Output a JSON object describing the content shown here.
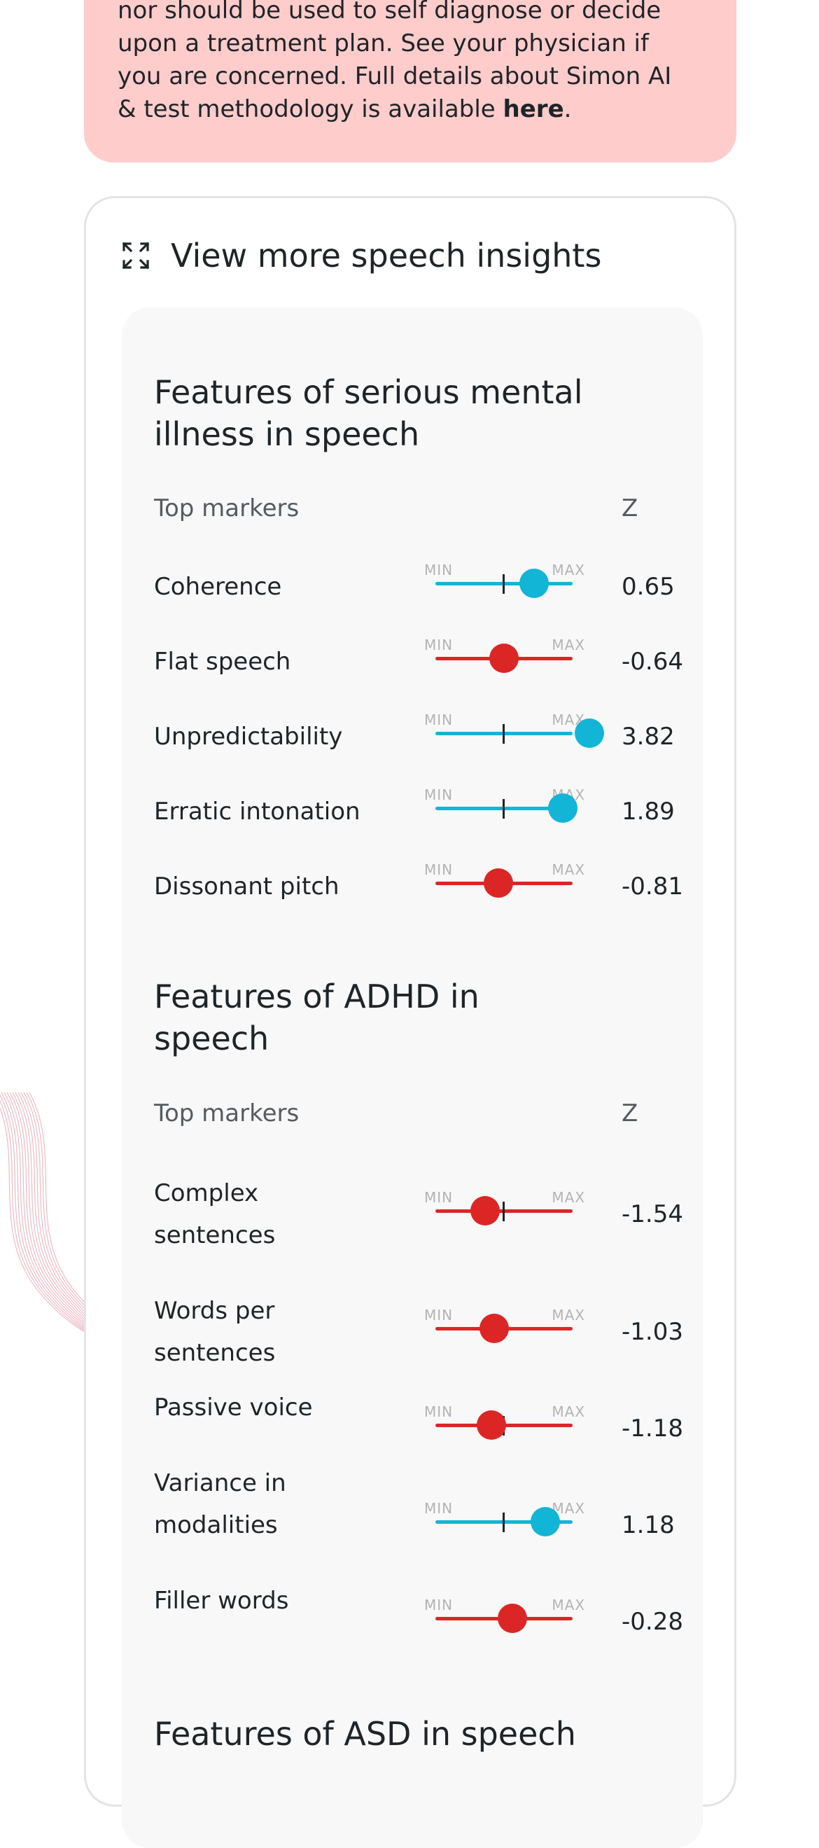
{
  "disclaimer": {
    "lines": [
      "nor should be used to self diagnose or decide",
      "upon a treatment plan. See your physician if",
      "you are concerned. Full details about Simon AI"
    ],
    "last_line_prefix": "& test methodology is available ",
    "link_text": "here",
    "last_line_suffix": "."
  },
  "insights_card": {
    "title": "View more speech insights",
    "icon": "expand-icon"
  },
  "colors": {
    "positive": "#12b5d6",
    "negative": "#dc2626",
    "disclaimer_bg": "#ffcccc"
  },
  "slider_labels": {
    "min": "MIN",
    "max": "MAX"
  },
  "sections": [
    {
      "title_lines": [
        "Features of serious mental",
        "illness in speech"
      ],
      "header_label": "Top markers",
      "header_z": "Z",
      "markers": [
        {
          "label_lines": [
            "Coherence"
          ],
          "z": "0.65",
          "level": 0.72,
          "polarity": "positive"
        },
        {
          "label_lines": [
            "Flat speech"
          ],
          "z": "-0.64",
          "level": 0.5,
          "polarity": "negative"
        },
        {
          "label_lines": [
            "Unpredictability"
          ],
          "z": "3.82",
          "level": 1.12,
          "polarity": "positive"
        },
        {
          "label_lines": [
            "Erratic intonation"
          ],
          "z": "1.89",
          "level": 0.93,
          "polarity": "positive"
        },
        {
          "label_lines": [
            "Dissonant pitch"
          ],
          "z": "-0.81",
          "level": 0.46,
          "polarity": "negative"
        }
      ]
    },
    {
      "title_lines": [
        "Features of ADHD in",
        "speech"
      ],
      "header_label": "Top markers",
      "header_z": "Z",
      "markers": [
        {
          "label_lines": [
            "Complex",
            "sentences"
          ],
          "z": "-1.54",
          "level": 0.36,
          "polarity": "negative"
        },
        {
          "label_lines": [
            "Words per",
            "sentences"
          ],
          "z": "-1.03",
          "level": 0.43,
          "polarity": "negative"
        },
        {
          "label_lines": [
            "Passive voice"
          ],
          "z": "-1.18",
          "level": 0.41,
          "polarity": "negative"
        },
        {
          "label_lines": [
            "Variance in",
            "modalities"
          ],
          "z": "1.18",
          "level": 0.8,
          "polarity": "positive"
        },
        {
          "label_lines": [
            "Filler words"
          ],
          "z": "-0.28",
          "level": 0.56,
          "polarity": "negative"
        }
      ]
    }
  ],
  "next_section_title": "Features of ASD in speech"
}
